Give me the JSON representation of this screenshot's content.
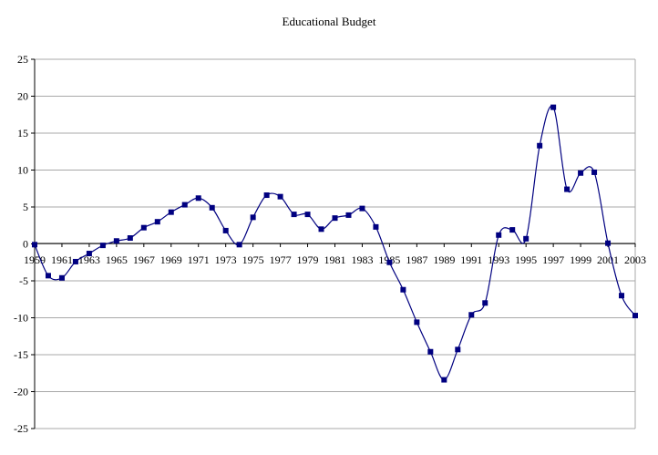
{
  "chart_data": {
    "type": "line",
    "title": "Educational Budget",
    "xlabel": "",
    "ylabel": "",
    "ylim": [
      -25,
      25
    ],
    "yticks": [
      25,
      20,
      15,
      10,
      5,
      0,
      -5,
      -10,
      -15,
      -20,
      -25
    ],
    "xlim": [
      1959,
      2003
    ],
    "xtick_labels": [
      "1959",
      "1961",
      "1963",
      "1965",
      "1967",
      "1969",
      "1971",
      "1973",
      "1975",
      "1977",
      "1979",
      "1981",
      "1983",
      "1985",
      "1987",
      "1989",
      "1991",
      "1993",
      "1995",
      "1997",
      "1999",
      "2001",
      "2003"
    ],
    "grid": true,
    "series_color": "#000080",
    "line_color": "#000080",
    "series": [
      {
        "x": [
          1959,
          1960,
          1961,
          1962,
          1963,
          1964,
          1965,
          1966,
          1967,
          1968,
          1969,
          1970,
          1971,
          1972,
          1973,
          1974,
          1975,
          1976,
          1977,
          1978,
          1979,
          1980,
          1981,
          1982,
          1983,
          1984,
          1985,
          1986,
          1987,
          1988,
          1989,
          1990,
          1991,
          1992,
          1993,
          1994,
          1995,
          1996,
          1997,
          1998,
          1999,
          2000,
          2001,
          2002,
          2003
        ],
        "values": [
          -0.1,
          -4.3,
          -4.6,
          -2.4,
          -1.3,
          -0.2,
          0.4,
          0.8,
          2.2,
          3.0,
          4.3,
          5.3,
          6.2,
          4.9,
          1.8,
          -0.1,
          3.6,
          6.6,
          6.4,
          4.0,
          4.0,
          2.0,
          3.5,
          3.9,
          4.8,
          2.3,
          -2.5,
          -6.2,
          -10.6,
          -14.6,
          -18.4,
          -14.3,
          -9.6,
          -8.0,
          1.2,
          1.9,
          0.7,
          13.3,
          18.5,
          7.4,
          9.6,
          9.7,
          0.1,
          -7.0,
          -9.7
        ]
      }
    ]
  }
}
